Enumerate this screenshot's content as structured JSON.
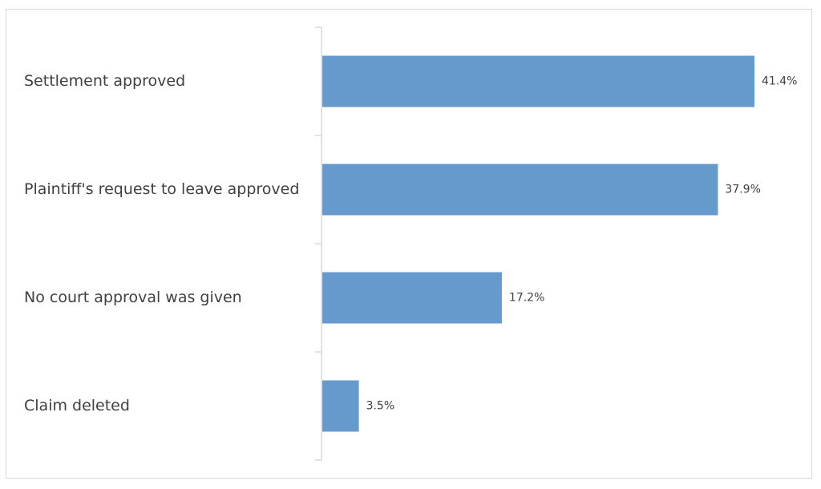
{
  "chart_data": {
    "type": "bar",
    "orientation": "horizontal",
    "categories": [
      "Settlement approved",
      "Plaintiff's request to leave approved",
      "No court approval was given",
      "Claim deleted"
    ],
    "values": [
      41.4,
      37.9,
      17.2,
      3.5
    ],
    "value_labels": [
      "41.4%",
      "37.9%",
      "17.2%",
      "3.5%"
    ],
    "unit": "%",
    "title": "",
    "xlabel": "",
    "ylabel": "",
    "xlim": [
      0,
      41.4
    ],
    "grid": false,
    "legend": "none",
    "bar_color": "#6699cc",
    "axis_color": "#d9d9d9",
    "text_color": "#404040"
  }
}
